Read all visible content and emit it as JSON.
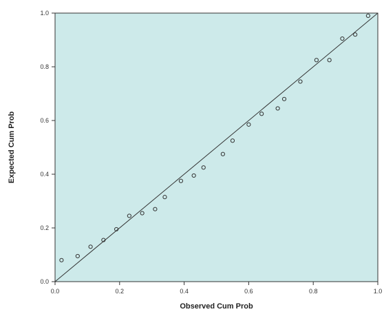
{
  "chart_data": {
    "type": "scatter",
    "title": "",
    "xlabel": "Observed Cum Prob",
    "ylabel": "Expected Cum Prob",
    "xlim": [
      0,
      1
    ],
    "ylim": [
      0,
      1
    ],
    "x_ticks": [
      0,
      0.2,
      0.4,
      0.6,
      0.8,
      1
    ],
    "y_ticks": [
      0,
      0.2,
      0.4,
      0.6,
      0.8,
      1
    ],
    "x_tick_labels": [
      "0.0",
      "0.2",
      "0.4",
      "0.6",
      "0.8",
      "1.0"
    ],
    "y_tick_labels": [
      "0.0",
      "0.2",
      "0.4",
      "0.6",
      "0.8",
      "1.0"
    ],
    "grid": false,
    "plot_background": "#cdeaea",
    "point_color": "#333333",
    "reference_line": {
      "from": [
        0,
        0
      ],
      "to": [
        1,
        1
      ],
      "color": "#333333"
    },
    "series": [
      {
        "points": [
          [
            0.02,
            0.08
          ],
          [
            0.07,
            0.095
          ],
          [
            0.11,
            0.13
          ],
          [
            0.15,
            0.155
          ],
          [
            0.19,
            0.195
          ],
          [
            0.23,
            0.245
          ],
          [
            0.27,
            0.255
          ],
          [
            0.31,
            0.27
          ],
          [
            0.34,
            0.315
          ],
          [
            0.39,
            0.375
          ],
          [
            0.43,
            0.395
          ],
          [
            0.46,
            0.425
          ],
          [
            0.52,
            0.475
          ],
          [
            0.55,
            0.525
          ],
          [
            0.6,
            0.585
          ],
          [
            0.64,
            0.625
          ],
          [
            0.69,
            0.645
          ],
          [
            0.71,
            0.68
          ],
          [
            0.76,
            0.745
          ],
          [
            0.81,
            0.825
          ],
          [
            0.85,
            0.825
          ],
          [
            0.89,
            0.905
          ],
          [
            0.93,
            0.92
          ],
          [
            0.97,
            0.99
          ]
        ]
      }
    ]
  }
}
